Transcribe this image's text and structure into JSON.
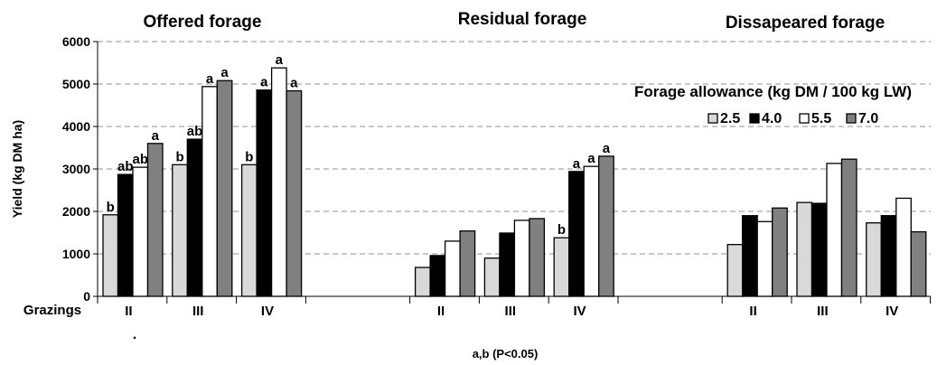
{
  "chart_data": {
    "type": "bar",
    "title": "",
    "panel_titles": [
      "Offered forage",
      "Residual forage",
      "Dissapeared forage"
    ],
    "ylabel": "Yield (kg DM ha)",
    "xlabel": "a,b (P<0.05)",
    "x_axis_row_label": "Grazings",
    "ylim": [
      0,
      6000
    ],
    "y_ticks": [
      0,
      1000,
      2000,
      3000,
      4000,
      5000,
      6000
    ],
    "grid": "horizontal dashed",
    "legend": {
      "title": "Forage allowance (kg DM / 100 kg LW)",
      "placement": "top-right"
    },
    "stray_mark": ".",
    "series": [
      {
        "name": "2.5",
        "color": "#d9d9d9"
      },
      {
        "name": "4.0",
        "color": "#000000"
      },
      {
        "name": "5.5",
        "color": "#ffffff"
      },
      {
        "name": "7.0",
        "color": "#808080"
      }
    ],
    "groups": [
      {
        "panel": 0,
        "category": "II",
        "values": [
          1920,
          2870,
          3040,
          3600
        ],
        "labels": [
          "b",
          "ab",
          "ab",
          "a"
        ]
      },
      {
        "panel": 0,
        "category": "III",
        "values": [
          3100,
          3700,
          4940,
          5080
        ],
        "labels": [
          "b",
          "ab",
          "a",
          "a"
        ]
      },
      {
        "panel": 0,
        "category": "IV",
        "values": [
          3100,
          4860,
          5380,
          4840
        ],
        "labels": [
          "b",
          "a",
          "a",
          "a"
        ]
      },
      {
        "panel": 1,
        "category": "II",
        "values": [
          680,
          960,
          1300,
          1540
        ],
        "labels": [
          "",
          "",
          "",
          ""
        ]
      },
      {
        "panel": 1,
        "category": "III",
        "values": [
          900,
          1490,
          1790,
          1830
        ],
        "labels": [
          "",
          "",
          "",
          ""
        ]
      },
      {
        "panel": 1,
        "category": "IV",
        "values": [
          1380,
          2940,
          3060,
          3300
        ],
        "labels": [
          "b",
          "a",
          "a",
          "a"
        ]
      },
      {
        "panel": 2,
        "category": "II",
        "values": [
          1220,
          1900,
          1760,
          2080
        ],
        "labels": [
          "",
          "",
          "",
          ""
        ]
      },
      {
        "panel": 2,
        "category": "III",
        "values": [
          2210,
          2190,
          3130,
          3230
        ],
        "labels": [
          "",
          "",
          "",
          ""
        ]
      },
      {
        "panel": 2,
        "category": "IV",
        "values": [
          1730,
          1900,
          2310,
          1520
        ],
        "labels": [
          "",
          "",
          "",
          ""
        ]
      }
    ]
  }
}
